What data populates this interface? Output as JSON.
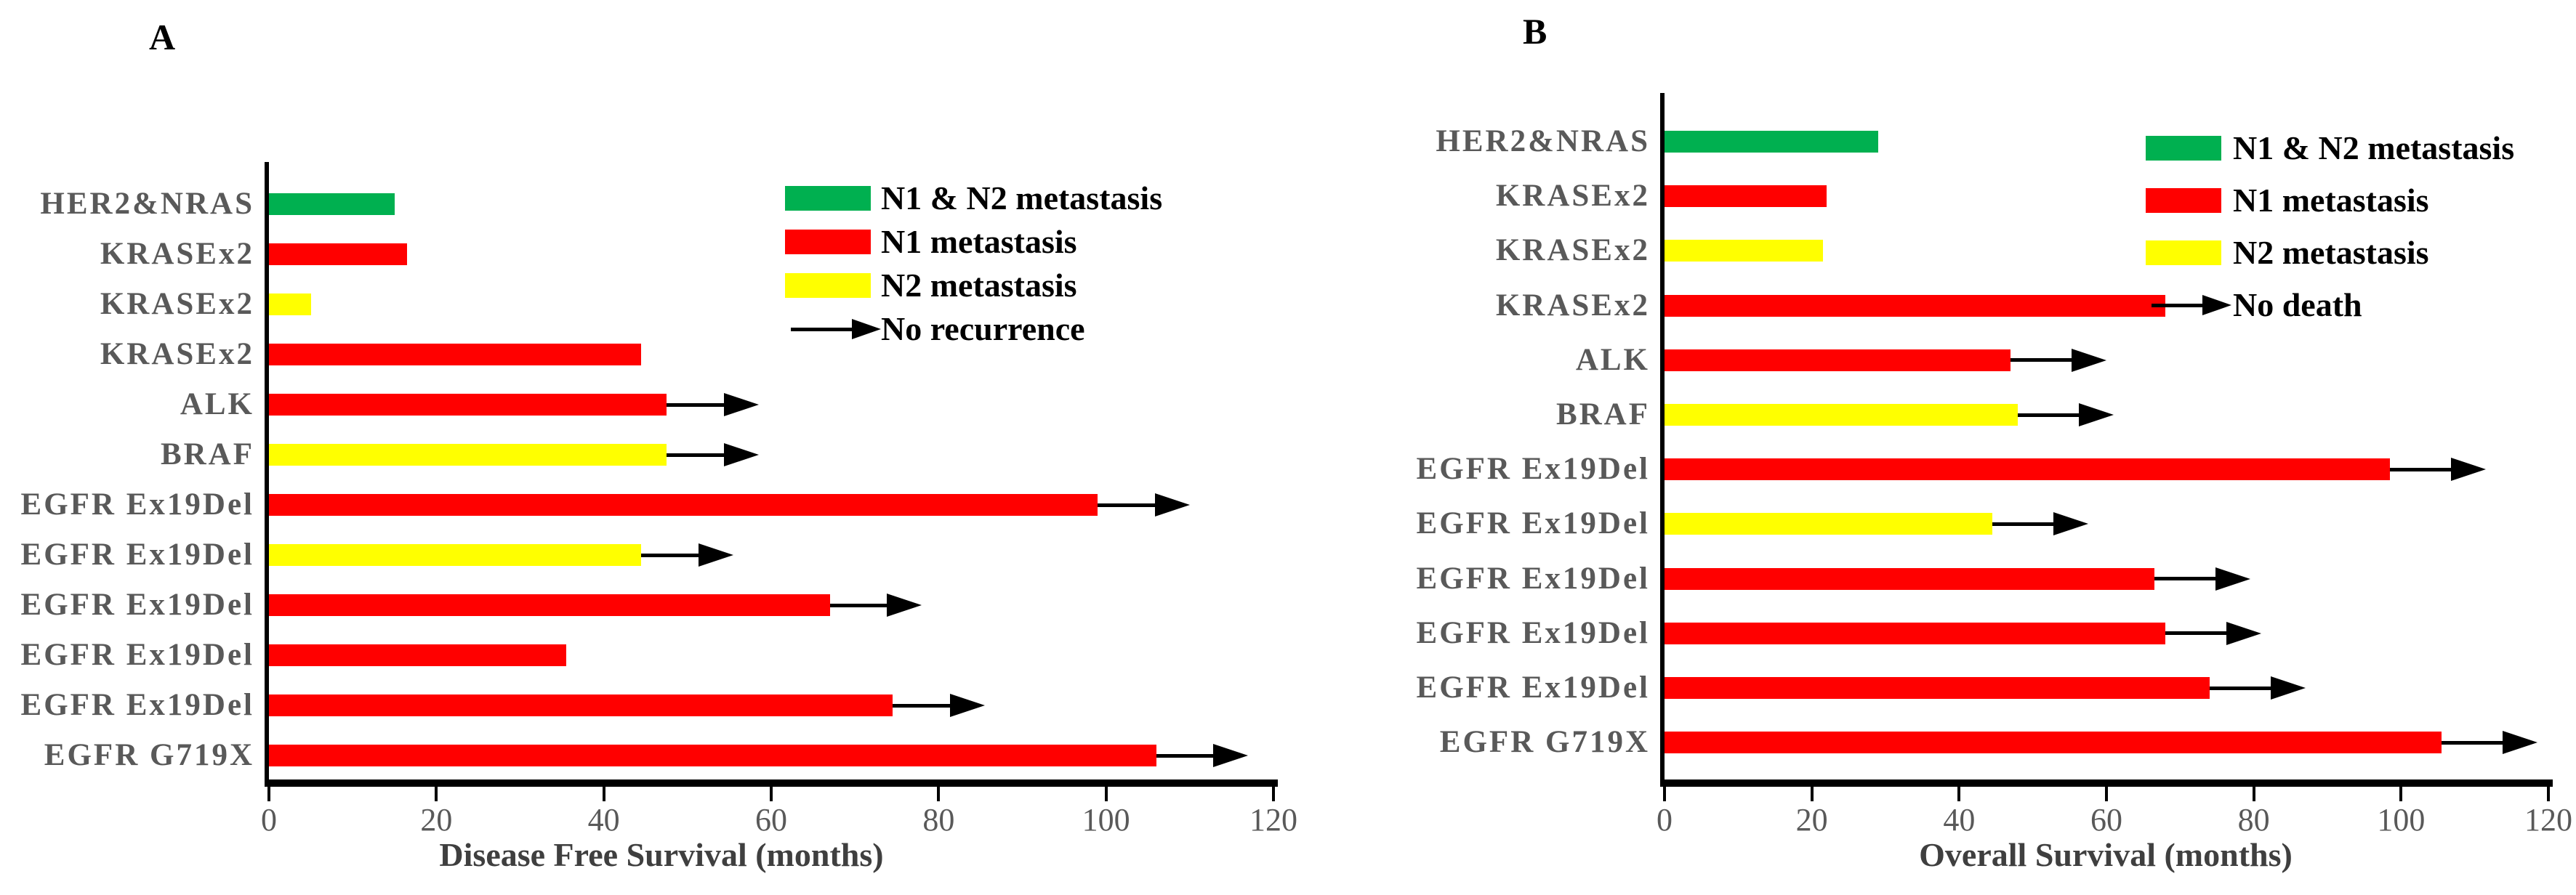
{
  "figure": {
    "background": "#FFFFFF"
  },
  "colors": {
    "n1_n2_metastasis": "#00B050",
    "n1_metastasis": "#FF0000",
    "n2_metastasis": "#FFFF00",
    "axis": "#000000",
    "category_label": "#595959",
    "tick_label": "#595959",
    "axis_title": "#3F3F3F",
    "legend_text": "#000000"
  },
  "chart_data": [
    {
      "panel_label": "A",
      "type": "bar",
      "orientation": "horizontal",
      "xlabel": "Disease Free Survival (months)",
      "xlim": [
        0,
        120
      ],
      "xticks": [
        0,
        20,
        40,
        60,
        80,
        100,
        120
      ],
      "grid": false,
      "legend_position": "top-right-inside",
      "arrow_meaning": "No recurrence",
      "arrow_extension_months": 11,
      "legend": [
        {
          "label": "N1 & N2 metastasis",
          "swatch": "#00B050"
        },
        {
          "label": "N1 metastasis",
          "swatch": "#FF0000"
        },
        {
          "label": "N2 metastasis",
          "swatch": "#FFFF00"
        },
        {
          "label": "No recurrence",
          "swatch": "arrow"
        }
      ],
      "bars": [
        {
          "label": "HER2&NRAS",
          "value": 15,
          "group": "N1 & N2 metastasis",
          "color": "#00B050",
          "arrow": false
        },
        {
          "label": "KRASEx2",
          "value": 16.5,
          "group": "N1 metastasis",
          "color": "#FF0000",
          "arrow": false
        },
        {
          "label": "KRASEx2",
          "value": 5,
          "group": "N2 metastasis",
          "color": "#FFFF00",
          "arrow": false
        },
        {
          "label": "KRASEx2",
          "value": 44.5,
          "group": "N1 metastasis",
          "color": "#FF0000",
          "arrow": false
        },
        {
          "label": "ALK",
          "value": 47.5,
          "group": "N1 metastasis",
          "color": "#FF0000",
          "arrow": true
        },
        {
          "label": "BRAF",
          "value": 47.5,
          "group": "N2 metastasis",
          "color": "#FFFF00",
          "arrow": true
        },
        {
          "label": "EGFR Ex19Del",
          "value": 99,
          "group": "N1 metastasis",
          "color": "#FF0000",
          "arrow": true
        },
        {
          "label": "EGFR Ex19Del",
          "value": 44.5,
          "group": "N2 metastasis",
          "color": "#FFFF00",
          "arrow": true
        },
        {
          "label": "EGFR Ex19Del",
          "value": 67,
          "group": "N1 metastasis",
          "color": "#FF0000",
          "arrow": true
        },
        {
          "label": "EGFR Ex19Del",
          "value": 35.5,
          "group": "N1 metastasis",
          "color": "#FF0000",
          "arrow": false
        },
        {
          "label": "EGFR Ex19Del",
          "value": 74.5,
          "group": "N1 metastasis",
          "color": "#FF0000",
          "arrow": true
        },
        {
          "label": "EGFR G719X",
          "value": 106,
          "group": "N1 metastasis",
          "color": "#FF0000",
          "arrow": true
        }
      ]
    },
    {
      "panel_label": "B",
      "type": "bar",
      "orientation": "horizontal",
      "xlabel": "Overall Survival (months)",
      "xlim": [
        0,
        120
      ],
      "xticks": [
        0,
        20,
        40,
        60,
        80,
        100,
        120
      ],
      "grid": false,
      "legend_position": "top-right-inside",
      "arrow_meaning": "No death",
      "arrow_extension_months": 13,
      "legend": [
        {
          "label": "N1 & N2 metastasis",
          "swatch": "#00B050"
        },
        {
          "label": "N1 metastasis",
          "swatch": "#FF0000"
        },
        {
          "label": "N2 metastasis",
          "swatch": "#FFFF00"
        },
        {
          "label": "No death",
          "swatch": "arrow"
        }
      ],
      "bars": [
        {
          "label": "HER2&NRAS",
          "value": 29,
          "group": "N1 & N2 metastasis",
          "color": "#00B050",
          "arrow": false
        },
        {
          "label": "KRASEx2",
          "value": 22,
          "group": "N1 metastasis",
          "color": "#FF0000",
          "arrow": false
        },
        {
          "label": "KRASEx2",
          "value": 21.5,
          "group": "N2 metastasis",
          "color": "#FFFF00",
          "arrow": false
        },
        {
          "label": "KRASEx2",
          "value": 68,
          "group": "N1 metastasis",
          "color": "#FF0000",
          "arrow": false
        },
        {
          "label": "ALK",
          "value": 47,
          "group": "N1 metastasis",
          "color": "#FF0000",
          "arrow": true
        },
        {
          "label": "BRAF",
          "value": 48,
          "group": "N2 metastasis",
          "color": "#FFFF00",
          "arrow": true
        },
        {
          "label": "EGFR Ex19Del",
          "value": 98.5,
          "group": "N1 metastasis",
          "color": "#FF0000",
          "arrow": true
        },
        {
          "label": "EGFR Ex19Del",
          "value": 44.5,
          "group": "N2 metastasis",
          "color": "#FFFF00",
          "arrow": true
        },
        {
          "label": "EGFR Ex19Del",
          "value": 66.5,
          "group": "N1 metastasis",
          "color": "#FF0000",
          "arrow": true
        },
        {
          "label": "EGFR Ex19Del",
          "value": 68,
          "group": "N1 metastasis",
          "color": "#FF0000",
          "arrow": true
        },
        {
          "label": "EGFR Ex19Del",
          "value": 74,
          "group": "N1 metastasis",
          "color": "#FF0000",
          "arrow": true
        },
        {
          "label": "EGFR G719X",
          "value": 105.5,
          "group": "N1 metastasis",
          "color": "#FF0000",
          "arrow": true
        }
      ]
    }
  ]
}
